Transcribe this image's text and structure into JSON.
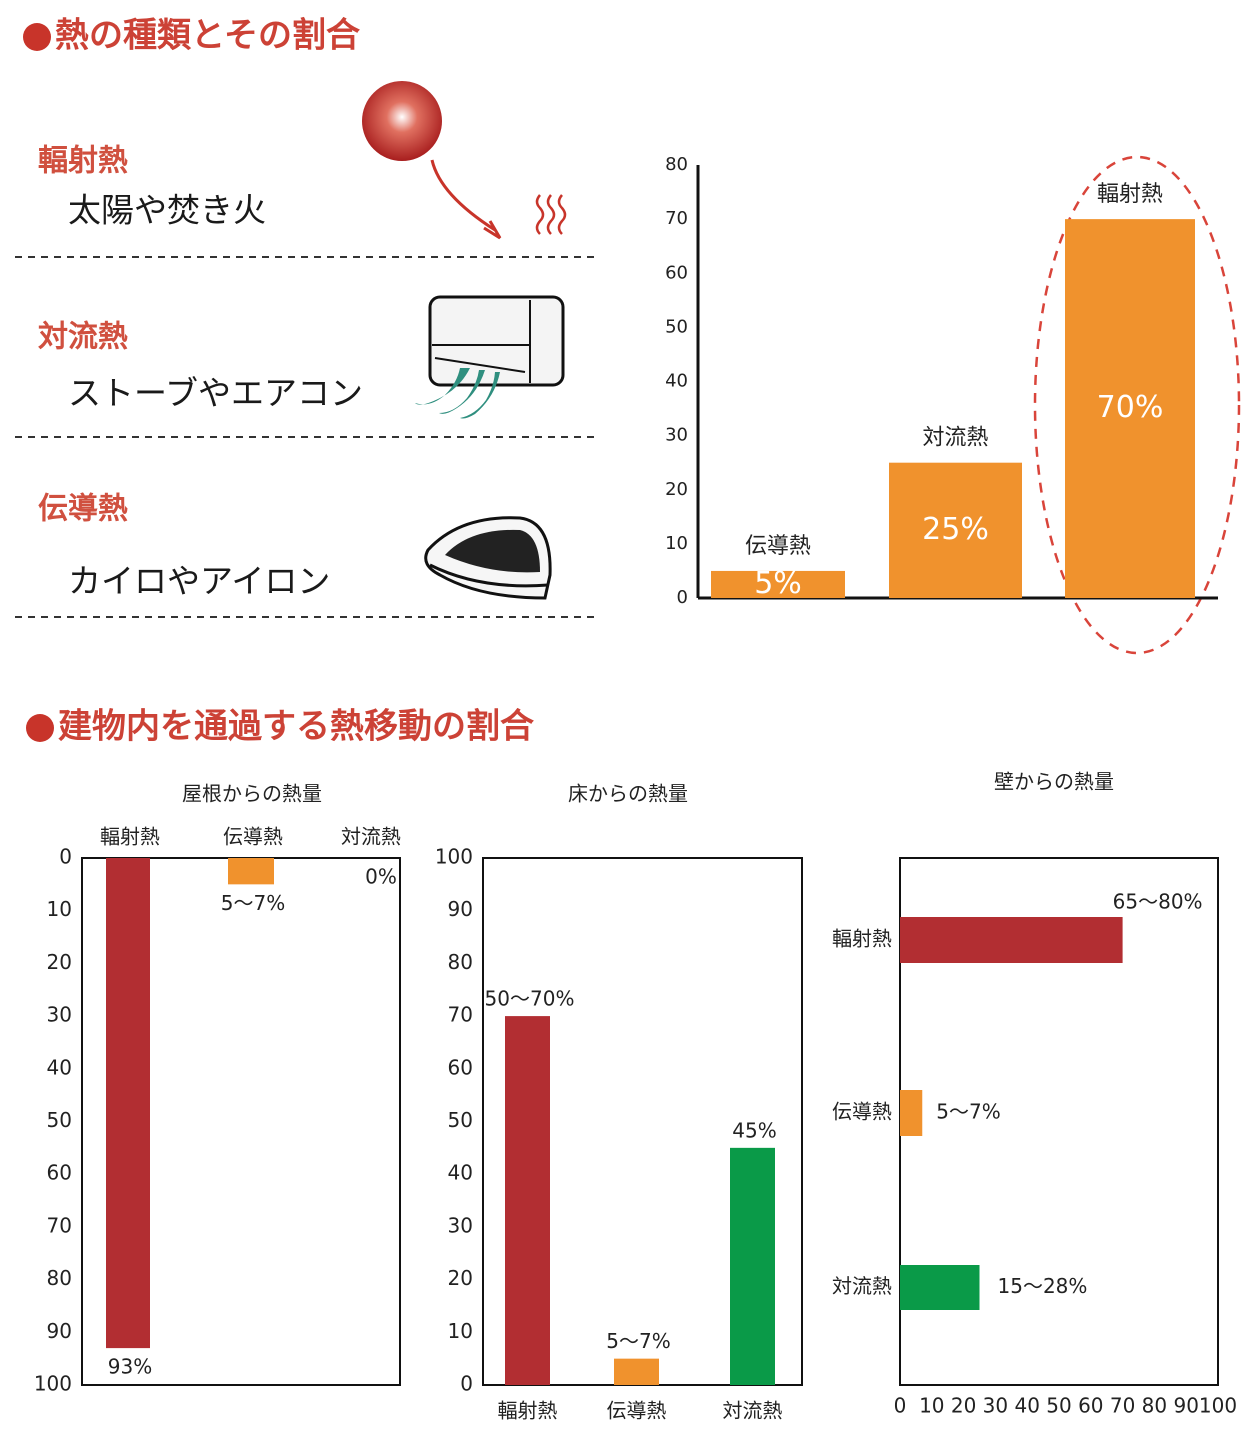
{
  "heading1": "熱の種類とその割合",
  "heat_types": [
    {
      "name": "輻射熱",
      "examples": "太陽や焚き火"
    },
    {
      "name": "対流熱",
      "examples": "ストーブやエアコン"
    },
    {
      "name": "伝導熱",
      "examples": "カイロやアイロン"
    }
  ],
  "heading2": "建物内を通過する熱移動の割合",
  "chart_data": [
    {
      "type": "bar",
      "categories": [
        "伝導熱",
        "対流熱",
        "輻射熱"
      ],
      "values": [
        5,
        25,
        70
      ],
      "value_labels": [
        "5%",
        "25%",
        "70%"
      ],
      "color": "#f0922d",
      "ylim": [
        0,
        80
      ],
      "yticks": [
        0,
        10,
        20,
        30,
        40,
        50,
        60,
        70,
        80
      ]
    },
    {
      "type": "bar",
      "title": "屋根からの熱量",
      "categories": [
        "輻射熱",
        "伝導熱",
        "対流熱"
      ],
      "values": [
        93,
        5,
        0
      ],
      "value_labels": [
        "93%",
        "5〜7%",
        "0%"
      ],
      "colors": [
        "#b22e32",
        "#f0922d",
        "#0a9a48"
      ],
      "y_inverted": true,
      "ylim": [
        0,
        100
      ],
      "yticks": [
        0,
        10,
        20,
        30,
        40,
        50,
        60,
        70,
        80,
        90,
        100
      ]
    },
    {
      "type": "bar",
      "title": "床からの熱量",
      "categories": [
        "輻射熱",
        "伝導熱",
        "対流熱"
      ],
      "values": [
        70,
        5,
        45
      ],
      "value_labels": [
        "50〜70%",
        "5〜7%",
        "45%"
      ],
      "colors": [
        "#b22e32",
        "#f0922d",
        "#0a9a48"
      ],
      "ylim": [
        0,
        100
      ],
      "yticks": [
        0,
        10,
        20,
        30,
        40,
        50,
        60,
        70,
        80,
        90,
        100
      ]
    },
    {
      "type": "bar",
      "orientation": "horizontal",
      "title": "壁からの熱量",
      "categories": [
        "輻射熱",
        "伝導熱",
        "対流熱"
      ],
      "values": [
        70,
        7,
        25
      ],
      "value_labels": [
        "65〜80%",
        "5〜7%",
        "15〜28%"
      ],
      "colors": [
        "#b22e32",
        "#f0922d",
        "#0a9a48"
      ],
      "xlim": [
        0,
        100
      ],
      "xticks": [
        0,
        10,
        20,
        30,
        40,
        50,
        60,
        70,
        80,
        90,
        100
      ]
    }
  ]
}
